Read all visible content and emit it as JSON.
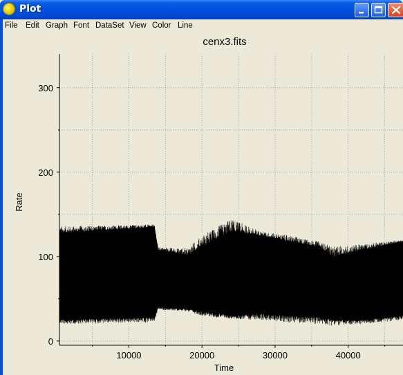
{
  "window": {
    "title": "Plot",
    "icon": "app-yellow-circle-icon"
  },
  "menubar": {
    "items": [
      "File",
      "Edit",
      "Graph",
      "Font",
      "DataSet",
      "View",
      "Color",
      "Line"
    ]
  },
  "colors": {
    "titlebar": "#0050e0",
    "client_bg": "#ece9d8",
    "plot_bg": "#ece9d8",
    "data": "#000000",
    "close_button": "#d9421c"
  },
  "chart_data": {
    "type": "line",
    "title": "cenx3.fits",
    "xlabel": "Time",
    "ylabel": "Rate",
    "xlim": [
      500,
      47500
    ],
    "ylim": [
      -5,
      340
    ],
    "xticks": [
      10000,
      20000,
      30000,
      40000
    ],
    "yticks": [
      0,
      100,
      200,
      300
    ],
    "grid": true,
    "series": [
      {
        "x": [
          500,
          13500,
          14000,
          18000,
          20000,
          24000,
          28000,
          32000,
          36000,
          38000,
          42000,
          47500
        ],
        "low": [
          25,
          28,
          40,
          38,
          35,
          30,
          32,
          30,
          28,
          25,
          25,
          30
        ],
        "high": [
          128,
          135,
          108,
          102,
          112,
          130,
          125,
          118,
          112,
          100,
          108,
          118
        ],
        "spike_max": [
          136,
          138,
          111,
          110,
          125,
          145,
          130,
          125,
          118,
          112,
          115,
          120
        ],
        "spike_min": [
          20,
          22,
          37,
          35,
          30,
          26,
          25,
          22,
          20,
          18,
          20,
          25
        ]
      }
    ]
  }
}
